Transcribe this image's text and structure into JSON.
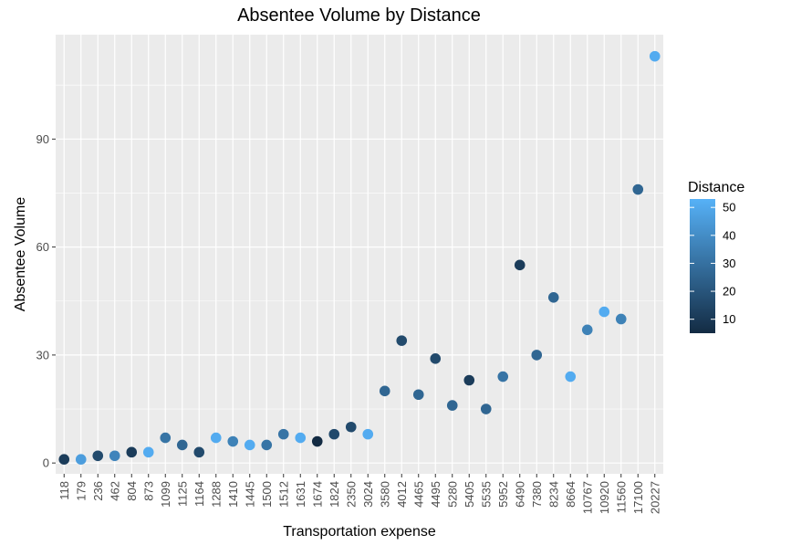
{
  "chart_data": {
    "type": "scatter",
    "title": "Absentee Volume by Distance",
    "xlabel": "Transportation expense",
    "ylabel": "Absentee Volume",
    "categories": [
      "118",
      "179",
      "236",
      "462",
      "804",
      "873",
      "1099",
      "1125",
      "1164",
      "1288",
      "1410",
      "1445",
      "1500",
      "1512",
      "1631",
      "1674",
      "1824",
      "2350",
      "3024",
      "3580",
      "4012",
      "4465",
      "4495",
      "5280",
      "5405",
      "5535",
      "5952",
      "6490",
      "7380",
      "8234",
      "8664",
      "10767",
      "10920",
      "11560",
      "17100",
      "20227"
    ],
    "values": [
      1,
      1,
      2,
      2,
      3,
      3,
      7,
      5,
      3,
      7,
      6,
      5,
      5,
      8,
      7,
      6,
      8,
      10,
      8,
      20,
      34,
      19,
      29,
      16,
      23,
      15,
      24,
      55,
      30,
      46,
      24,
      37,
      42,
      40,
      76,
      113
    ],
    "color_values": [
      11,
      46,
      16,
      37,
      11,
      51,
      31,
      26,
      16,
      51,
      36,
      51,
      31,
      31,
      51,
      3,
      16,
      16,
      51,
      26,
      16,
      26,
      16,
      26,
      11,
      26,
      31,
      11,
      26,
      26,
      51,
      36,
      51,
      36,
      26,
      51
    ],
    "color_label": "Distance",
    "ylim": [
      -3,
      119
    ],
    "y_ticks": [
      0,
      30,
      60,
      90
    ],
    "legend": {
      "title": "Distance",
      "ticks": [
        10,
        20,
        30,
        40,
        50
      ],
      "range": [
        5,
        53
      ],
      "low_color": "#132B43",
      "high_color": "#56B1F7",
      "position": "right"
    },
    "grid": true,
    "panel_color": "#EBEBEB",
    "grid_color": "#FFFFFF"
  }
}
